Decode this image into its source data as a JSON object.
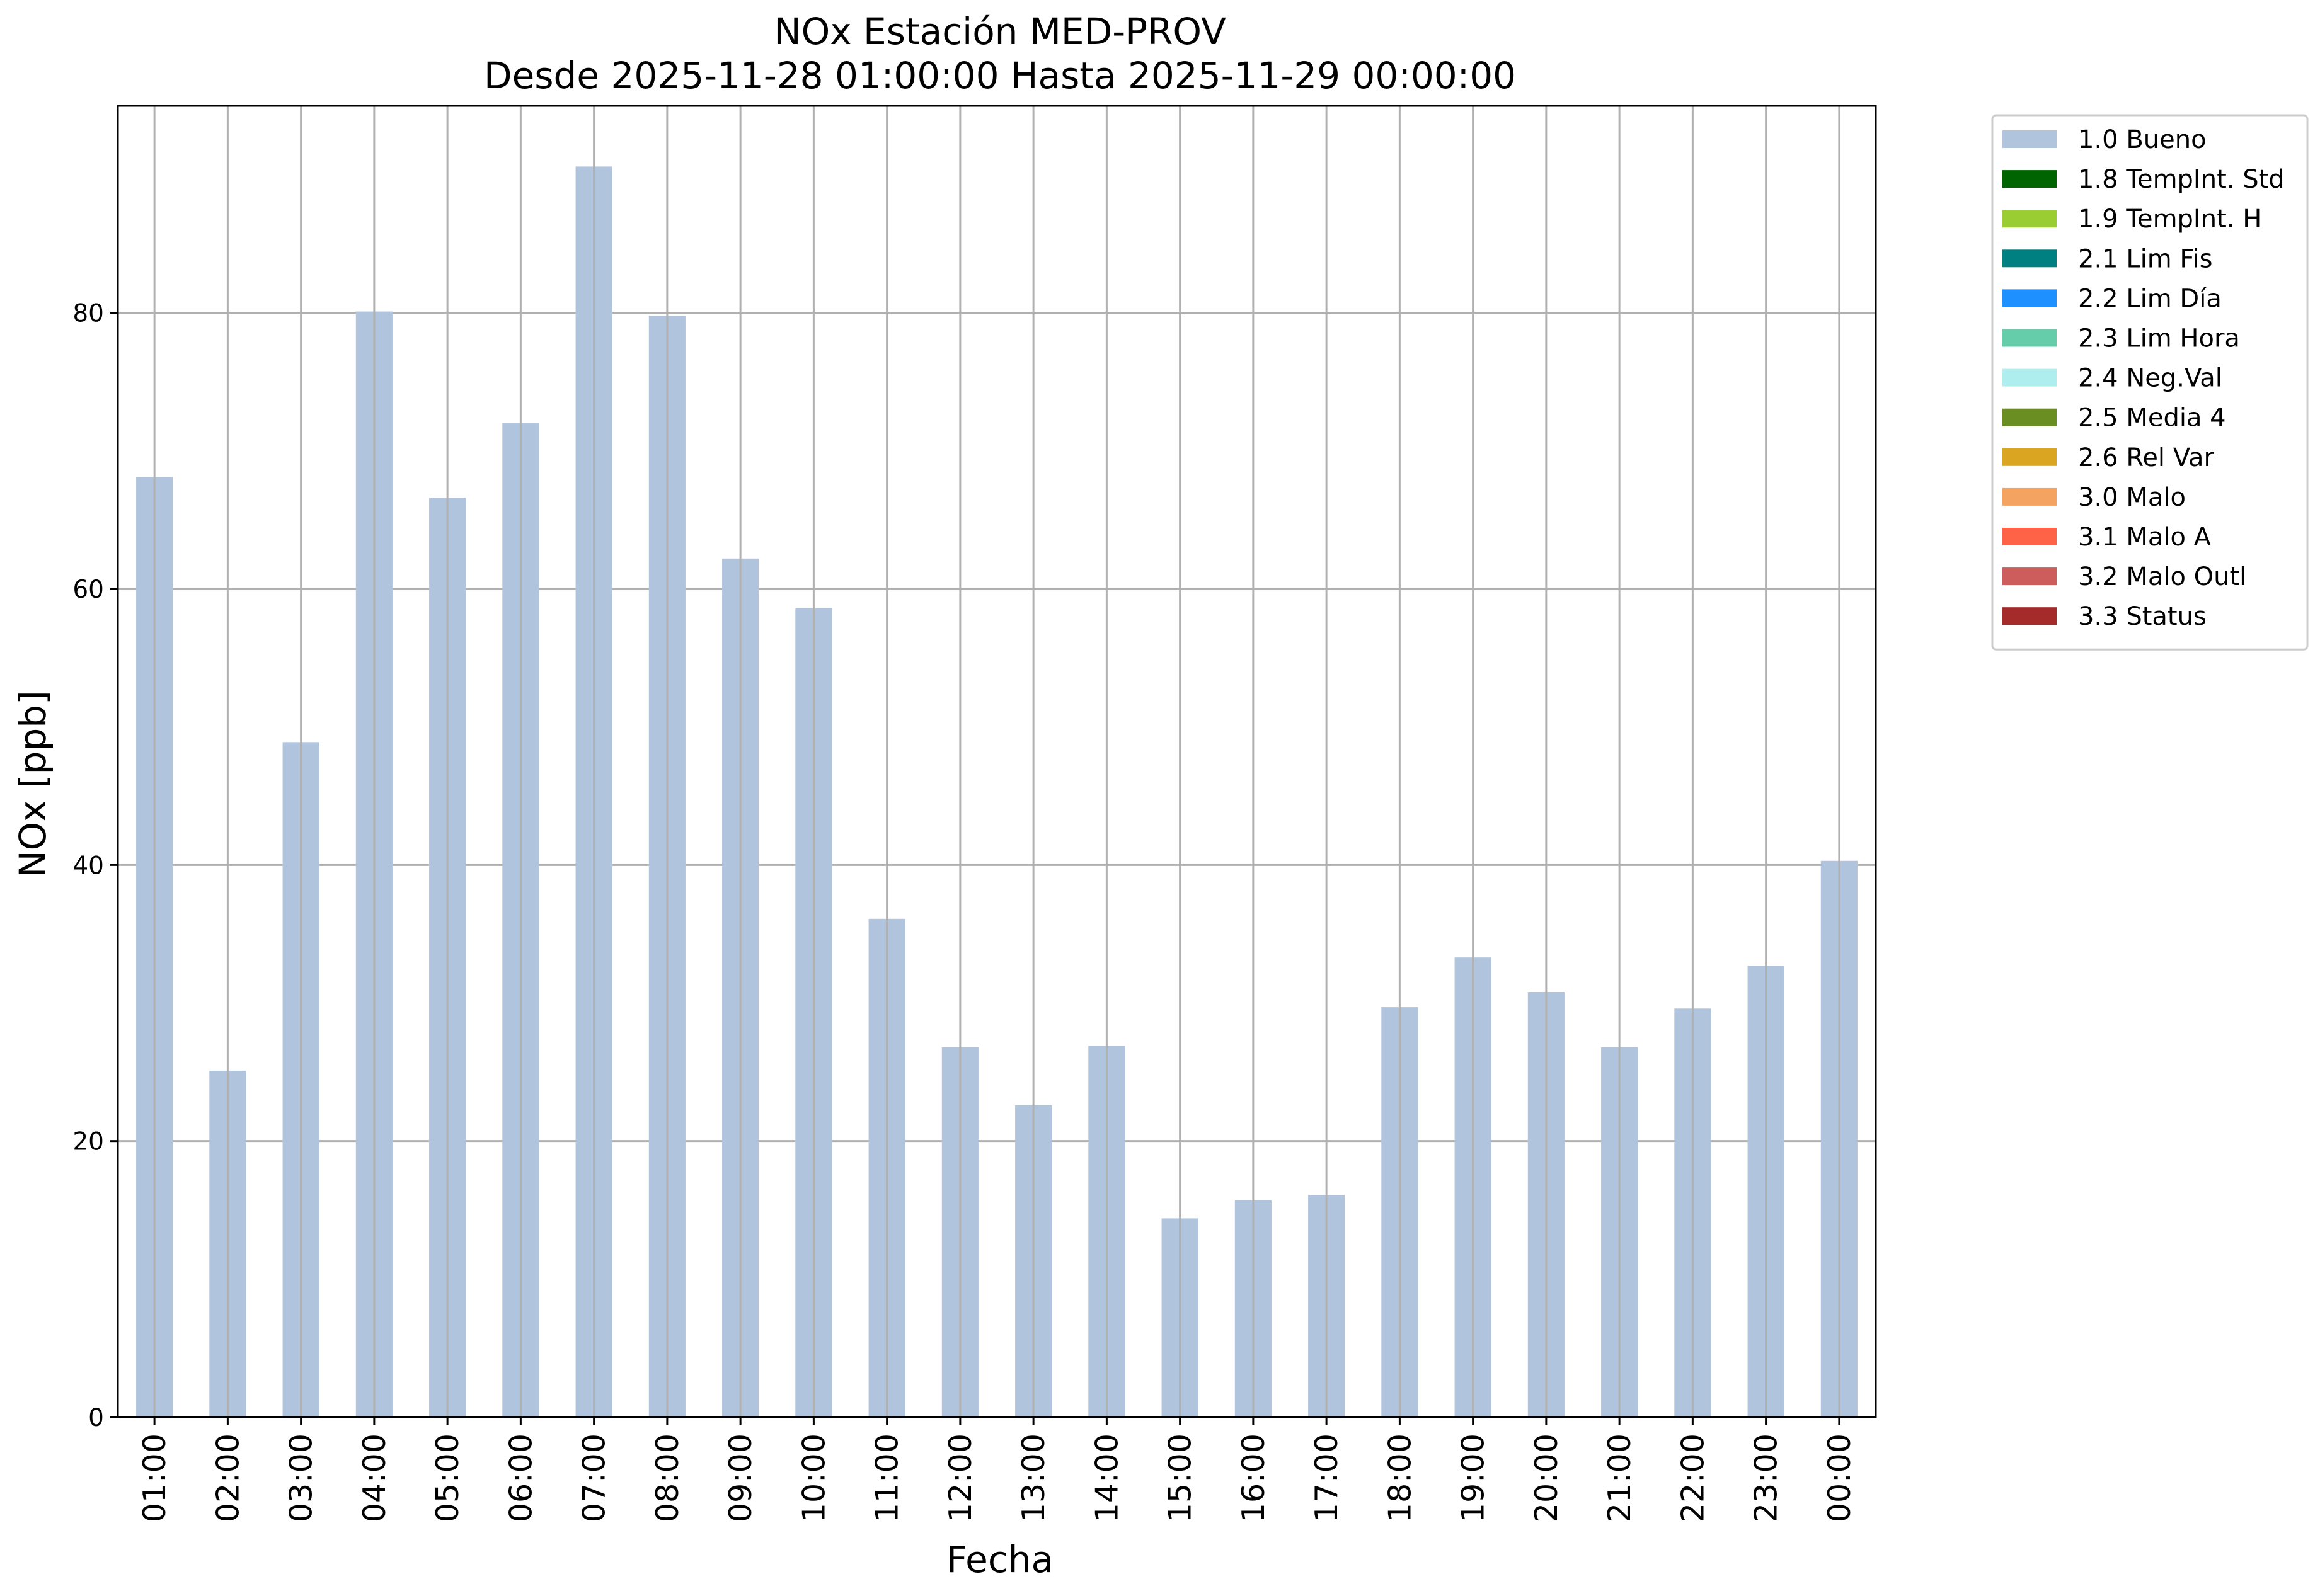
{
  "chart_data": {
    "type": "bar",
    "title": "NOx Estación MED-PROV",
    "subtitle": "Desde 2025-11-28 01:00:00 Hasta 2025-11-29 00:00:00",
    "xlabel": "Fecha",
    "ylabel": "NOx [ppb]",
    "ylim": [
      0,
      95
    ],
    "yticks": [
      0,
      20,
      40,
      60,
      80
    ],
    "grid": true,
    "legend_position": "outside top-right",
    "categories": [
      "01:00",
      "02:00",
      "03:00",
      "04:00",
      "05:00",
      "06:00",
      "07:00",
      "08:00",
      "09:00",
      "10:00",
      "11:00",
      "12:00",
      "13:00",
      "14:00",
      "15:00",
      "16:00",
      "17:00",
      "18:00",
      "19:00",
      "20:00",
      "21:00",
      "22:00",
      "23:00",
      "00:00"
    ],
    "series": [
      {
        "name": "1.0 Bueno",
        "color": "#b0c4de",
        "values": [
          68.1,
          25.1,
          48.9,
          80.1,
          66.6,
          72.0,
          90.6,
          79.8,
          62.2,
          58.6,
          36.1,
          26.8,
          22.6,
          26.9,
          14.4,
          15.7,
          16.1,
          29.7,
          33.3,
          30.8,
          26.8,
          29.6,
          32.7,
          40.3
        ]
      }
    ],
    "legend": [
      {
        "label": "1.0 Bueno",
        "color": "#b0c4de"
      },
      {
        "label": "1.8 TempInt. Std",
        "color": "#006400"
      },
      {
        "label": "1.9 TempInt. H",
        "color": "#9acd32"
      },
      {
        "label": "2.1 Lim Fis",
        "color": "#008080"
      },
      {
        "label": "2.2 Lim Día",
        "color": "#1e90ff"
      },
      {
        "label": "2.3 Lim Hora",
        "color": "#66cdaa"
      },
      {
        "label": "2.4 Neg.Val",
        "color": "#afeeee"
      },
      {
        "label": "2.5 Media 4",
        "color": "#6b8e23"
      },
      {
        "label": "2.6 Rel Var",
        "color": "#daa520"
      },
      {
        "label": "3.0 Malo",
        "color": "#f4a460"
      },
      {
        "label": "3.1 Malo A",
        "color": "#ff6347"
      },
      {
        "label": "3.2 Malo Outl",
        "color": "#cd5c5c"
      },
      {
        "label": "3.3 Status",
        "color": "#a52a2a"
      }
    ]
  }
}
